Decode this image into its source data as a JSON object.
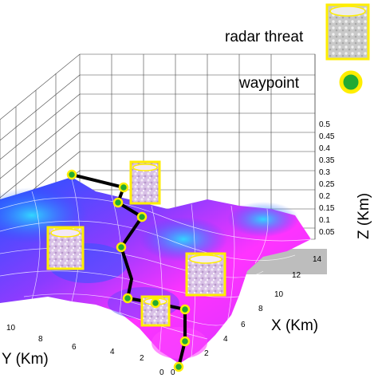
{
  "legend": {
    "radar_label": "radar threat",
    "waypoint_label": "waypoint"
  },
  "axes": {
    "x_title": "X (Km)",
    "y_title": "Y (Km)",
    "z_title": "Z (Km)",
    "x_ticks": [
      "0",
      "2",
      "4",
      "6",
      "8",
      "10",
      "12",
      "14"
    ],
    "y_ticks": [
      "0",
      "2",
      "4",
      "6",
      "8",
      "10"
    ],
    "z_ticks": [
      "0.05",
      "0.1",
      "0.15",
      "0.2",
      "0.25",
      "0.3",
      "0.35",
      "0.4",
      "0.45",
      "0.5"
    ]
  },
  "colors": {
    "terrain_high": "#ff33ff",
    "terrain_mid": "#9933ff",
    "terrain_low": "#2266ff",
    "terrain_valley": "#33ccff",
    "path": "#000000",
    "waypoint_fill": "#22aa33",
    "waypoint_ring": "#ffee00",
    "radar_border": "#ffee00"
  }
}
